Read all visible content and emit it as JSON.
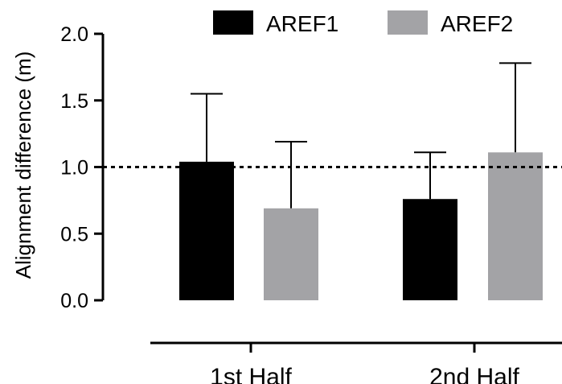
{
  "chart_data": {
    "type": "bar",
    "categories": [
      "1st Half",
      "2nd Half"
    ],
    "series": [
      {
        "name": "AREF1",
        "color": "#000000",
        "values": [
          1.04,
          0.76
        ],
        "error_upper": [
          1.55,
          1.11
        ]
      },
      {
        "name": "AREF2",
        "color": "#a3a3a6",
        "values": [
          0.69,
          1.11
        ],
        "error_upper": [
          1.19,
          1.78
        ]
      }
    ],
    "ylabel": "Alignment difference (m)",
    "xlabel": "",
    "ylim": [
      0,
      2.0
    ],
    "y_ticks": [
      "0.0",
      "0.5",
      "1.0",
      "1.5",
      "2.0"
    ],
    "y_tick_values": [
      0,
      0.5,
      1.0,
      1.5,
      2.0
    ],
    "reference_line": {
      "value": 1.0,
      "style": "dotted"
    },
    "grid": false,
    "legend_position": "top"
  }
}
